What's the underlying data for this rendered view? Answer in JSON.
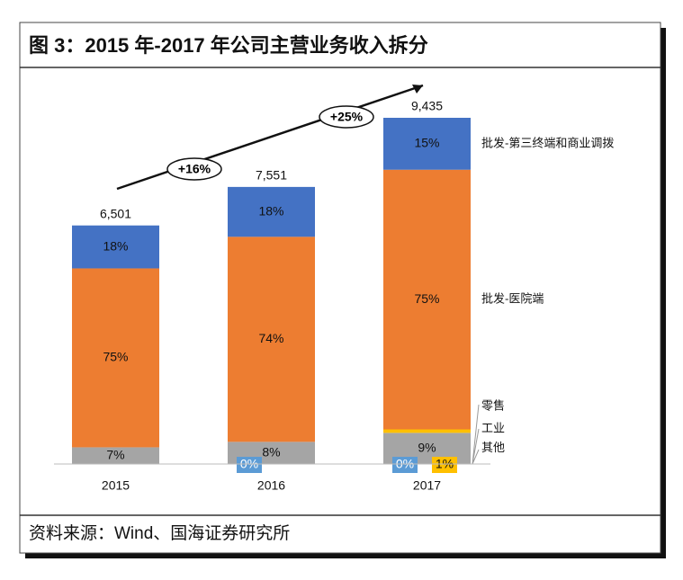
{
  "chart_data": {
    "type": "stacked-bar",
    "title": "图 3：2015 年-2017 年公司主营业务收入拆分",
    "source": "资料来源：Wind、国海证券研究所",
    "categories": [
      "2015",
      "2016",
      "2017"
    ],
    "totals": {
      "values": [
        6501,
        7551,
        9435
      ],
      "value_labels": [
        "6,501",
        "7,551",
        "9,435"
      ]
    },
    "series": [
      {
        "name": "其他",
        "color": "#a5a5a5",
        "values": [
          7,
          8,
          9
        ],
        "value_labels": [
          "7%",
          "8%",
          "9%"
        ]
      },
      {
        "name": "工业",
        "color": "#5b9bd5",
        "values": [
          null,
          0,
          0
        ],
        "value_labels": [
          null,
          "0%",
          "0%"
        ]
      },
      {
        "name": "零售",
        "color": "#ffc000",
        "values": [
          null,
          null,
          1
        ],
        "value_labels": [
          null,
          null,
          "1%"
        ]
      },
      {
        "name": "批发-医院端",
        "color": "#ed7d31",
        "values": [
          75,
          74,
          75
        ],
        "value_labels": [
          "75%",
          "74%",
          "75%"
        ]
      },
      {
        "name": "批发-第三终端和商业调拨",
        "color": "#4472c4",
        "values": [
          18,
          18,
          15
        ],
        "value_labels": [
          "18%",
          "18%",
          "15%"
        ]
      }
    ],
    "annotations": [
      "+16%",
      "+25%"
    ]
  }
}
